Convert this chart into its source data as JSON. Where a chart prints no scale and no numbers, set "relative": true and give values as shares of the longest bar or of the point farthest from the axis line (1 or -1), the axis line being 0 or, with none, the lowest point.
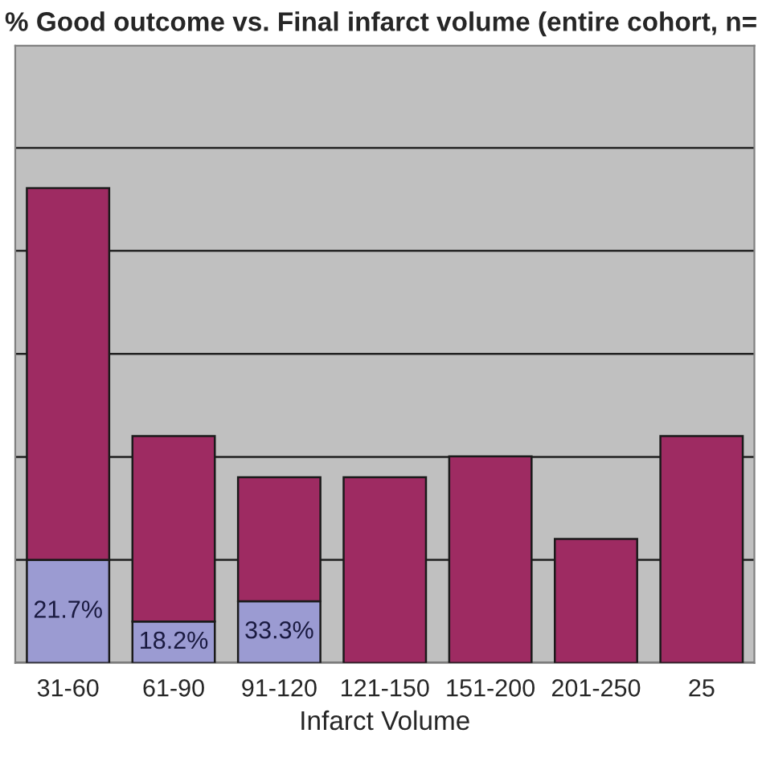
{
  "chart_data": {
    "type": "bar",
    "title": "% Good outcome vs. Final infarct volume (entire cohort, n=",
    "xlabel": "Infarct Volume",
    "categories": [
      "31-60",
      "61-90",
      "91-120",
      "121-150",
      "151-200",
      "201-250",
      "25"
    ],
    "annotations": [
      "21.7%",
      "18.2%",
      "33.3%"
    ],
    "stacked": true,
    "relative": true,
    "grid": "y",
    "legend": false,
    "series": [
      {
        "color": "#9b9bd2",
        "values": [
          0.217,
          0.087,
          0.13,
          null,
          null,
          null,
          null
        ]
      },
      {
        "color": "#9e2b62",
        "values": [
          0.783,
          0.391,
          0.261,
          0.391,
          0.435,
          0.261,
          0.478
        ]
      }
    ]
  }
}
